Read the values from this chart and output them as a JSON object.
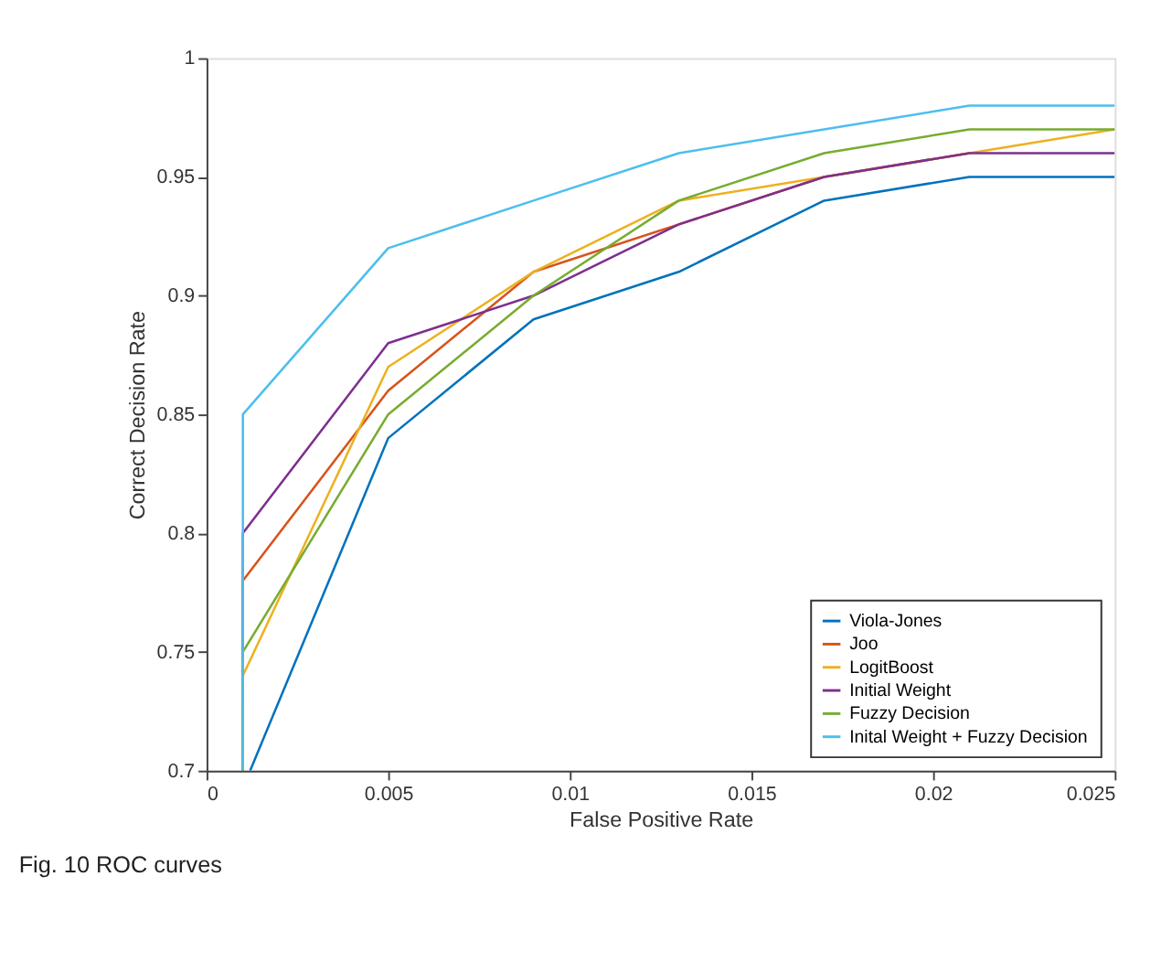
{
  "chart_data": {
    "type": "line",
    "xlabel": "False Positive Rate",
    "ylabel": "Correct Decision Rate",
    "annotations": [
      "Fig. 10 ROC curves"
    ],
    "xlim": [
      0,
      0.025
    ],
    "xticks": [
      0,
      0.005,
      0.01,
      0.015,
      0.02,
      0.025
    ],
    "ylim": [
      0.7,
      1
    ],
    "yticks": [
      0.7,
      0.75,
      0.8,
      0.85,
      0.9,
      0.95,
      1
    ],
    "legend": "bottom right",
    "grid": false,
    "marker": "none",
    "line_style": "solid",
    "series": [
      {
        "name": "Viola-Jones",
        "color": "#0072bd",
        "x": [
          0.0012,
          0.005,
          0.009,
          0.013,
          0.017,
          0.021,
          0.025
        ],
        "values": [
          0.7,
          0.84,
          0.89,
          0.91,
          0.94,
          0.95,
          0.95
        ]
      },
      {
        "name": "Joo",
        "color": "#d95319",
        "x": [
          0.001,
          0.001,
          0.005,
          0.009,
          0.013,
          0.017,
          0.021
        ],
        "values": [
          0.7,
          0.78,
          0.86,
          0.91,
          0.93,
          0.95,
          0.96
        ]
      },
      {
        "name": "LogitBoost",
        "color": "#edb120",
        "x": [
          0.001,
          0.001,
          0.005,
          0.009,
          0.013,
          0.017,
          0.021,
          0.025
        ],
        "values": [
          0.7,
          0.74,
          0.87,
          0.91,
          0.94,
          0.95,
          0.96,
          0.97
        ]
      },
      {
        "name": "Initial Weight",
        "color": "#7e2f8e",
        "x": [
          0.001,
          0.001,
          0.005,
          0.009,
          0.013,
          0.017,
          0.021,
          0.025
        ],
        "values": [
          0.7,
          0.8,
          0.88,
          0.9,
          0.93,
          0.95,
          0.96,
          0.96
        ]
      },
      {
        "name": "Fuzzy Decision",
        "color": "#77ac30",
        "x": [
          0.001,
          0.001,
          0.005,
          0.009,
          0.013,
          0.017,
          0.021,
          0.025
        ],
        "values": [
          0.7,
          0.75,
          0.85,
          0.9,
          0.94,
          0.96,
          0.97,
          0.97
        ]
      },
      {
        "name": "Inital Weight + Fuzzy Decision",
        "color": "#4dbeee",
        "x": [
          0.001,
          0.001,
          0.005,
          0.009,
          0.013,
          0.017,
          0.021,
          0.025
        ],
        "values": [
          0.7,
          0.85,
          0.92,
          0.94,
          0.96,
          0.97,
          0.98,
          0.98
        ]
      }
    ]
  }
}
